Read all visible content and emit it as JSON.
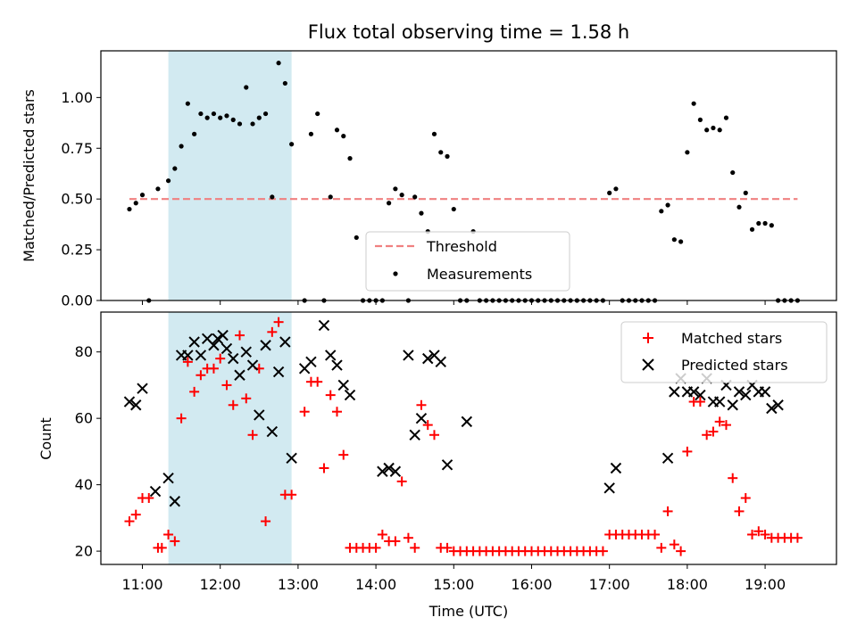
{
  "title": "Flux total observing time = 1.58 h",
  "colors": {
    "threshold": "#f08080",
    "measurement": "#000000",
    "matched": "#ff0000",
    "predicted": "#000000",
    "highlight": "#add8e6"
  },
  "chart_data": [
    {
      "type": "scatter",
      "panel": "top",
      "ylabel": "Matched/Predicted stars",
      "xlim": [
        "10:28",
        "19:55"
      ],
      "ylim": [
        0,
        1.23
      ],
      "yticks": [
        "0.00",
        "0.25",
        "0.50",
        "0.75",
        "1.00"
      ],
      "highlight_span": [
        "11:20",
        "12:55"
      ],
      "legend_position": "bottom-center",
      "series": [
        {
          "name": "Threshold",
          "style": "dashed-line",
          "x": [
            "10:50",
            "19:25"
          ],
          "y": [
            0.5,
            0.5
          ]
        },
        {
          "name": "Measurements",
          "style": "dot",
          "x": [
            "10:50",
            "10:55",
            "11:00",
            "11:05",
            "11:12",
            "11:20",
            "11:25",
            "11:30",
            "11:35",
            "11:40",
            "11:45",
            "11:50",
            "11:55",
            "12:00",
            "12:05",
            "12:10",
            "12:15",
            "12:20",
            "12:25",
            "12:30",
            "12:35",
            "12:40",
            "12:45",
            "12:50",
            "12:55",
            "13:05",
            "13:10",
            "13:15",
            "13:20",
            "13:25",
            "13:30",
            "13:35",
            "13:40",
            "13:45",
            "13:50",
            "13:55",
            "14:00",
            "14:05",
            "14:10",
            "14:15",
            "14:20",
            "14:25",
            "14:30",
            "14:35",
            "14:40",
            "14:45",
            "14:50",
            "14:55",
            "15:00",
            "15:05",
            "15:10",
            "15:15",
            "15:20",
            "15:25",
            "15:30",
            "15:35",
            "15:40",
            "15:45",
            "15:50",
            "15:55",
            "16:00",
            "16:05",
            "16:10",
            "16:15",
            "16:20",
            "16:25",
            "16:30",
            "16:35",
            "16:40",
            "16:45",
            "16:50",
            "16:55",
            "17:00",
            "17:05",
            "17:10",
            "17:15",
            "17:20",
            "17:25",
            "17:30",
            "17:35",
            "17:40",
            "17:45",
            "17:50",
            "17:55",
            "18:00",
            "18:05",
            "18:10",
            "18:15",
            "18:20",
            "18:25",
            "18:30",
            "18:35",
            "18:40",
            "18:45",
            "18:50",
            "18:55",
            "19:00",
            "19:05",
            "19:10",
            "19:15",
            "19:20",
            "19:25"
          ],
          "y": [
            0.45,
            0.48,
            0.52,
            0,
            0.55,
            0.59,
            0.65,
            0.76,
            0.97,
            0.82,
            0.92,
            0.9,
            0.92,
            0.9,
            0.91,
            0.89,
            0.87,
            1.05,
            0.87,
            0.9,
            0.92,
            0.51,
            1.17,
            1.07,
            0.77,
            0,
            0.82,
            0.92,
            0,
            0.51,
            0.84,
            0.81,
            0.7,
            0.31,
            0,
            0,
            0,
            0,
            0.48,
            0.55,
            0.52,
            0,
            0.51,
            0.43,
            0.34,
            0.82,
            0.73,
            0.71,
            0.45,
            0,
            0,
            0.34,
            0,
            0,
            0,
            0,
            0,
            0,
            0,
            0,
            0,
            0,
            0,
            0,
            0,
            0,
            0,
            0,
            0,
            0,
            0,
            0,
            0.53,
            0.55,
            0,
            0,
            0,
            0,
            0,
            0,
            0.44,
            0.47,
            0.3,
            0.29,
            0.73,
            0.97,
            0.89,
            0.84,
            0.85,
            0.84,
            0.9,
            0.63,
            0.46,
            0.53,
            0.35,
            0.38,
            0.38,
            0.37,
            0,
            0,
            0,
            0
          ]
        }
      ]
    },
    {
      "type": "scatter",
      "panel": "bottom",
      "xlabel": "Time (UTC)",
      "ylabel": "Count",
      "xlim": [
        "10:28",
        "19:55"
      ],
      "ylim": [
        16,
        92
      ],
      "xticks": [
        "11:00",
        "12:00",
        "13:00",
        "14:00",
        "15:00",
        "16:00",
        "17:00",
        "18:00",
        "19:00"
      ],
      "yticks": [
        "20",
        "40",
        "60",
        "80"
      ],
      "highlight_span": [
        "11:20",
        "12:55"
      ],
      "legend_position": "top-right",
      "series": [
        {
          "name": "Matched stars",
          "style": "plus",
          "x": [
            "10:50",
            "10:55",
            "11:00",
            "11:05",
            "11:12",
            "11:15",
            "11:20",
            "11:25",
            "11:30",
            "11:35",
            "11:40",
            "11:45",
            "11:50",
            "11:55",
            "12:00",
            "12:05",
            "12:10",
            "12:15",
            "12:20",
            "12:25",
            "12:30",
            "12:35",
            "12:40",
            "12:45",
            "12:50",
            "12:55",
            "13:05",
            "13:10",
            "13:15",
            "13:20",
            "13:25",
            "13:30",
            "13:35",
            "13:40",
            "13:45",
            "13:50",
            "13:55",
            "14:00",
            "14:05",
            "14:10",
            "14:15",
            "14:20",
            "14:25",
            "14:30",
            "14:35",
            "14:40",
            "14:45",
            "14:50",
            "14:55",
            "15:00",
            "15:05",
            "15:10",
            "15:15",
            "15:20",
            "15:25",
            "15:30",
            "15:35",
            "15:40",
            "15:45",
            "15:50",
            "15:55",
            "16:00",
            "16:05",
            "16:10",
            "16:15",
            "16:20",
            "16:25",
            "16:30",
            "16:35",
            "16:40",
            "16:45",
            "16:50",
            "16:55",
            "17:00",
            "17:05",
            "17:10",
            "17:15",
            "17:20",
            "17:25",
            "17:30",
            "17:35",
            "17:40",
            "17:45",
            "17:50",
            "17:55",
            "18:00",
            "18:05",
            "18:10",
            "18:15",
            "18:20",
            "18:25",
            "18:30",
            "18:35",
            "18:40",
            "18:45",
            "18:50",
            "18:55",
            "19:00",
            "19:05",
            "19:10",
            "19:15",
            "19:20",
            "19:25"
          ],
          "y": [
            29,
            31,
            36,
            36,
            21,
            21,
            25,
            23,
            60,
            77,
            68,
            73,
            75,
            75,
            78,
            70,
            64,
            85,
            66,
            55,
            75,
            29,
            86,
            89,
            37,
            37,
            62,
            71,
            71,
            45,
            67,
            62,
            49,
            21,
            21,
            21,
            21,
            21,
            25,
            23,
            23,
            41,
            24,
            21,
            64,
            58,
            55,
            21,
            21,
            20,
            20,
            20,
            20,
            20,
            20,
            20,
            20,
            20,
            20,
            20,
            20,
            20,
            20,
            20,
            20,
            20,
            20,
            20,
            20,
            20,
            20,
            20,
            20,
            25,
            25,
            25,
            25,
            25,
            25,
            25,
            25,
            21,
            32,
            22,
            20,
            50,
            65,
            65,
            55,
            56,
            59,
            58,
            42,
            32,
            36,
            25,
            26,
            25,
            24,
            24,
            24,
            24,
            24
          ]
        },
        {
          "name": "Predicted stars",
          "style": "x",
          "x": [
            "10:50",
            "10:55",
            "11:00",
            "11:10",
            "11:20",
            "11:25",
            "11:30",
            "11:35",
            "11:40",
            "11:45",
            "11:50",
            "11:55",
            "11:58",
            "12:02",
            "12:05",
            "12:10",
            "12:15",
            "12:20",
            "12:25",
            "12:30",
            "12:35",
            "12:40",
            "12:45",
            "12:50",
            "12:55",
            "13:05",
            "13:10",
            "13:20",
            "13:25",
            "13:30",
            "13:35",
            "13:40",
            "14:05",
            "14:10",
            "14:15",
            "14:25",
            "14:30",
            "14:35",
            "14:40",
            "14:45",
            "14:50",
            "14:55",
            "15:10",
            "17:00",
            "17:05",
            "17:45",
            "17:50",
            "17:55",
            "18:00",
            "18:05",
            "18:10",
            "18:15",
            "18:20",
            "18:25",
            "18:30",
            "18:35",
            "18:40",
            "18:45",
            "18:50",
            "18:55",
            "19:00",
            "19:05",
            "19:10"
          ],
          "y": [
            65,
            64,
            69,
            38,
            42,
            35,
            79,
            79,
            83,
            79,
            84,
            82,
            84,
            85,
            81,
            78,
            73,
            80,
            76,
            61,
            82,
            56,
            74,
            83,
            48,
            75,
            77,
            88,
            79,
            76,
            70,
            67,
            44,
            45,
            44,
            79,
            55,
            60,
            78,
            79,
            77,
            46,
            59,
            39,
            45,
            48,
            68,
            72,
            68,
            68,
            67,
            72,
            65,
            65,
            70,
            64,
            68,
            67,
            70,
            68,
            68,
            63,
            64
          ]
        }
      ]
    }
  ]
}
